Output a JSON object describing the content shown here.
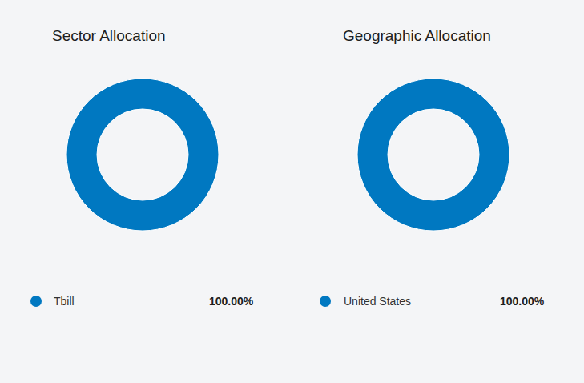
{
  "chart_data": [
    {
      "type": "donut",
      "title": "Sector Allocation",
      "categories": [
        "Tbill"
      ],
      "values": [
        100
      ],
      "value_labels": [
        "100.00%"
      ],
      "colors": [
        "#0078c1"
      ],
      "legend": "bottom"
    },
    {
      "type": "donut",
      "title": "Geographic Allocation",
      "categories": [
        "United States"
      ],
      "values": [
        100
      ],
      "value_labels": [
        "100.00%"
      ],
      "colors": [
        "#0078c1"
      ],
      "legend": "bottom"
    }
  ]
}
